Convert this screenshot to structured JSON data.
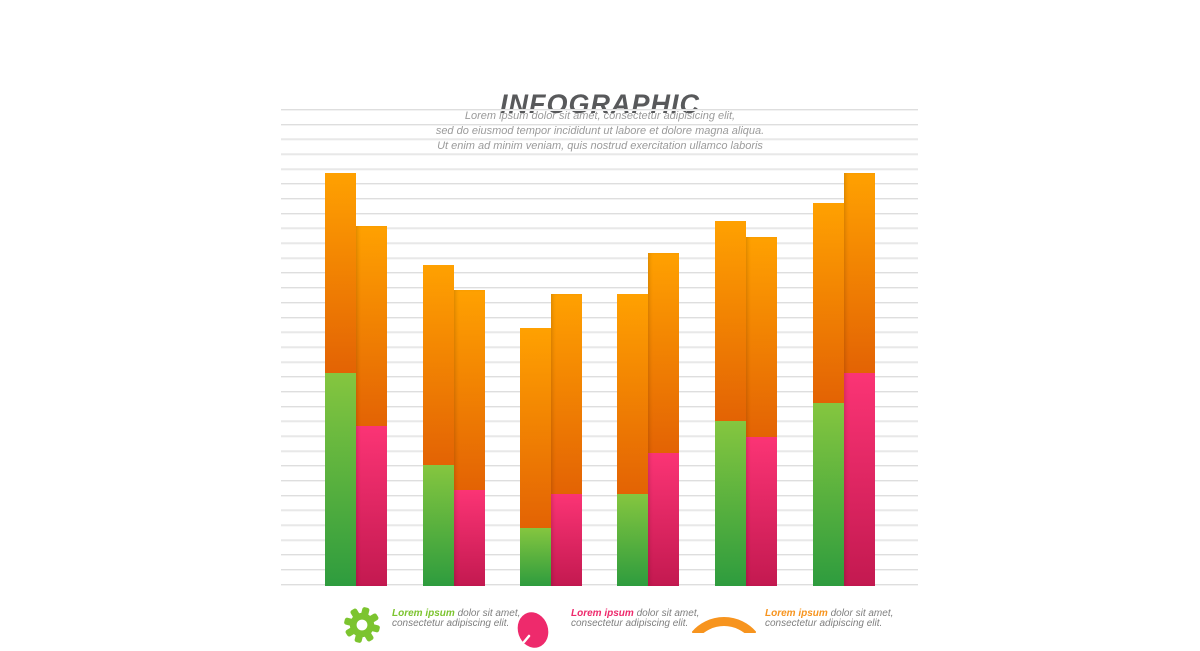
{
  "header": {
    "title": "INFOGRAPHIC",
    "subtitle_lines": [
      "Lorem ipsum dolor sit amet, consectetur adipisicing elit,",
      "sed do eiusmod tempor incididunt ut labore et dolore magna aliqua.",
      "Ut enim ad minim veniam, quis nostrud exercitation ullamco laboris"
    ]
  },
  "colors": {
    "title_text": "#58595b",
    "subtitle_text": "#9b9b9b",
    "gridline": "#dedede",
    "orange_top": "#ffa101",
    "orange_bottom": "#e36304",
    "green_top": "#85c63f",
    "green_bottom": "#2e9c3e",
    "pink_top": "#fb3475",
    "pink_bottom": "#c31950",
    "legend_text": "#7f7f7f",
    "legend_green": "#7cc42f",
    "legend_pink": "#ee2a6c",
    "legend_orange": "#f7941e"
  },
  "chart_data": {
    "type": "bar",
    "subtype": "grouped-stacked",
    "title": "INFOGRAPHIC",
    "categories": [
      "group-1",
      "group-2",
      "group-3",
      "group-4",
      "group-5",
      "group-6"
    ],
    "series": [
      {
        "name": "left-bar lower segment (green)",
        "color_top": "#85c63f",
        "color_bottom": "#2e9c3e",
        "values": [
          213,
          121,
          58,
          92,
          165,
          183
        ]
      },
      {
        "name": "right-bar lower segment (pink)",
        "color_top": "#fb3475",
        "color_bottom": "#c31950",
        "values": [
          160,
          96,
          92,
          133,
          149,
          213
        ]
      },
      {
        "name": "upper segment (orange cap, identical on every bar)",
        "color_top": "#ffa101",
        "color_bottom": "#e36304",
        "values": [
          200,
          200,
          200,
          200,
          200,
          200
        ]
      }
    ],
    "stacking": "each group has two adjacent bars: left = green base + orange cap, right = pink base + orange cap",
    "value_unit": "px",
    "axis_labels": "none",
    "data_labels": "none",
    "grid": {
      "visible": true,
      "orientation": "horizontal",
      "line_count": 33,
      "spacing_px": 14.84
    },
    "legend_position": "bottom"
  },
  "legend": {
    "items": [
      {
        "icon": "gear-icon",
        "highlight": "Lorem ipsum",
        "text_line1": "dolor sit amet,",
        "text_line2": "consectetur adipiscing elit.",
        "highlight_color": "#7cc42f"
      },
      {
        "icon": "balloon-icon",
        "highlight": "Lorem ipsum",
        "text_line1": "dolor sit amet,",
        "text_line2": "consectetur adipiscing elit.",
        "highlight_color": "#ee2a6c"
      },
      {
        "icon": "ring-icon",
        "highlight": "Lorem ipsum",
        "text_line1": "dolor sit amet,",
        "text_line2": "consectetur adipiscing elit.",
        "highlight_color": "#f7941e"
      }
    ]
  }
}
